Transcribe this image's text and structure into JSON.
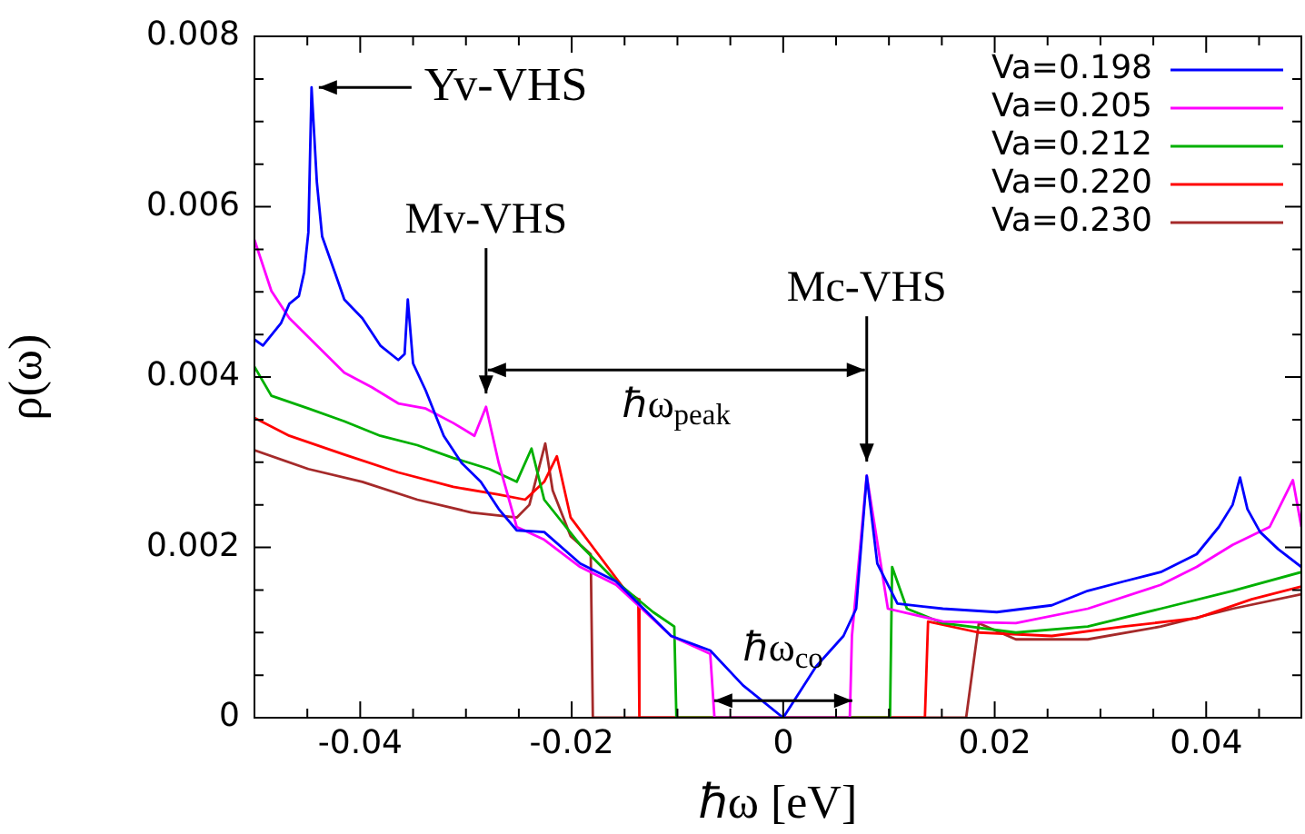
{
  "chart_data": {
    "type": "line",
    "xlabel": "ℏω [eV]",
    "ylabel": "ρ(ω)",
    "xlim": [
      -0.05,
      0.049
    ],
    "ylim": [
      0,
      0.008
    ],
    "xticks": [
      {
        "value": -0.045,
        "label": null
      },
      -0.04,
      {
        "value": -0.035,
        "label": null
      },
      {
        "value": -0.03,
        "label": null
      },
      {
        "value": -0.025,
        "label": null
      },
      -0.02,
      {
        "value": -0.015,
        "label": null
      },
      {
        "value": -0.01,
        "label": null
      },
      {
        "value": -0.005,
        "label": null
      },
      0,
      {
        "value": 0.005,
        "label": null
      },
      {
        "value": 0.01,
        "label": null
      },
      {
        "value": 0.015,
        "label": null
      },
      0.02,
      {
        "value": 0.025,
        "label": null
      },
      {
        "value": 0.03,
        "label": null
      },
      {
        "value": 0.035,
        "label": null
      },
      0.04,
      {
        "value": 0.045,
        "label": null
      }
    ],
    "yticks": [
      0,
      {
        "value": 0.0005,
        "label": null
      },
      {
        "value": 0.001,
        "label": null
      },
      {
        "value": 0.0015,
        "label": null
      },
      0.002,
      {
        "value": 0.0025,
        "label": null
      },
      {
        "value": 0.003,
        "label": null
      },
      {
        "value": 0.0035,
        "label": null
      },
      0.004,
      {
        "value": 0.0045,
        "label": null
      },
      {
        "value": 0.005,
        "label": null
      },
      {
        "value": 0.0055,
        "label": null
      },
      0.006,
      {
        "value": 0.0065,
        "label": null
      },
      {
        "value": 0.007,
        "label": null
      },
      {
        "value": 0.0075,
        "label": null
      },
      0.008
    ],
    "grid": false,
    "legend": "top right",
    "series": [
      {
        "name": "Va=0.198",
        "color": "#0000ff",
        "x": [
          -0.05,
          -0.0492,
          -0.0475,
          -0.0467,
          -0.0458,
          -0.0453,
          -0.0449,
          -0.0446,
          -0.0441,
          -0.0436,
          -0.0424,
          -0.0415,
          -0.0398,
          -0.0381,
          -0.0364,
          -0.0358,
          -0.0355,
          -0.035,
          -0.0338,
          -0.0321,
          -0.0304,
          -0.0286,
          -0.0269,
          -0.0252,
          -0.0226,
          -0.0192,
          -0.0158,
          -0.0106,
          -0.0069,
          -0.0038,
          0,
          0.0031,
          0.0057,
          0.0069,
          0.0079,
          0.0089,
          0.0108,
          0.0151,
          0.0202,
          0.0254,
          0.0288,
          0.0322,
          0.0357,
          0.0391,
          0.0412,
          0.0425,
          0.0432,
          0.0439,
          0.0451,
          0.0468,
          0.049
        ],
        "values": [
          0.00444,
          0.00437,
          0.00463,
          0.00486,
          0.00495,
          0.00523,
          0.0057,
          0.0074,
          0.00629,
          0.00565,
          0.00523,
          0.00491,
          0.00469,
          0.00437,
          0.0042,
          0.00427,
          0.00491,
          0.00416,
          0.00384,
          0.00331,
          0.00299,
          0.00277,
          0.00245,
          0.0022,
          0.00218,
          0.00181,
          0.0016,
          0.00096,
          0.00079,
          0.00038,
          0,
          0.0006,
          0.00096,
          0.00128,
          0.00284,
          0.00181,
          0.00134,
          0.00128,
          0.00124,
          0.00132,
          0.00149,
          0.0016,
          0.00171,
          0.00192,
          0.00224,
          0.0025,
          0.00282,
          0.00245,
          0.00218,
          0.00198,
          0.00177
        ]
      },
      {
        "name": "Va=0.205",
        "color": "#ff00ff",
        "x": [
          -0.05,
          -0.0484,
          -0.0467,
          -0.0441,
          -0.0415,
          -0.0389,
          -0.0364,
          -0.0338,
          -0.0312,
          -0.0292,
          -0.0281,
          -0.0269,
          -0.0252,
          -0.0226,
          -0.0192,
          -0.0158,
          -0.0106,
          -0.0069,
          -0.0065,
          0.0063,
          0.0065,
          0.0079,
          0.0099,
          0.0151,
          0.022,
          0.0288,
          0.0357,
          0.0391,
          0.0425,
          0.046,
          0.0482,
          0.049
        ],
        "values": [
          0.00561,
          0.00501,
          0.00469,
          0.00437,
          0.00405,
          0.00388,
          0.00369,
          0.00363,
          0.00346,
          0.00331,
          0.00365,
          0.00299,
          0.00224,
          0.00209,
          0.00177,
          0.00156,
          0.00096,
          0.00075,
          0,
          0,
          0.00096,
          0.00284,
          0.00128,
          0.00113,
          0.00111,
          0.00128,
          0.00156,
          0.00177,
          0.00203,
          0.00224,
          0.00279,
          0.00224
        ]
      },
      {
        "name": "Va=0.212",
        "color": "#00b000",
        "x": [
          -0.05,
          -0.0484,
          -0.0449,
          -0.0415,
          -0.0381,
          -0.0346,
          -0.0312,
          -0.0278,
          -0.0252,
          -0.0238,
          -0.0226,
          -0.0192,
          -0.0158,
          -0.0123,
          -0.0103,
          -0.0101,
          0.0101,
          0.0103,
          0.0117,
          0.0151,
          0.022,
          0.0288,
          0.0357,
          0.0425,
          0.049
        ],
        "values": [
          0.00412,
          0.00378,
          0.00363,
          0.00348,
          0.00331,
          0.0032,
          0.00305,
          0.00292,
          0.00277,
          0.00316,
          0.00256,
          0.00203,
          0.0016,
          0.00124,
          0.00107,
          0,
          0,
          0.00177,
          0.00128,
          0.00111,
          0.001,
          0.00107,
          0.00128,
          0.00149,
          0.00171
        ]
      },
      {
        "name": "Va=0.220",
        "color": "#ff0000",
        "x": [
          -0.05,
          -0.0467,
          -0.0415,
          -0.0364,
          -0.0312,
          -0.0269,
          -0.0244,
          -0.0226,
          -0.0214,
          -0.0201,
          -0.0175,
          -0.0149,
          -0.0137,
          -0.0136,
          0.0134,
          0.0137,
          0.0185,
          0.0254,
          0.0322,
          0.0391,
          0.0443,
          0.049
        ],
        "values": [
          0.00352,
          0.00331,
          0.00309,
          0.00288,
          0.00271,
          0.00262,
          0.00256,
          0.00277,
          0.00307,
          0.00235,
          0.00192,
          0.00149,
          0.00139,
          0,
          0,
          0.00113,
          0.001,
          0.00096,
          0.00107,
          0.00117,
          0.00139,
          0.00154
        ]
      },
      {
        "name": "Va=0.230",
        "color": "#a52a2a",
        "x": [
          -0.05,
          -0.0449,
          -0.0398,
          -0.0346,
          -0.0295,
          -0.0252,
          -0.024,
          -0.0225,
          -0.0218,
          -0.0201,
          -0.0182,
          -0.018,
          0.0173,
          0.0185,
          0.022,
          0.0288,
          0.0357,
          0.0425,
          0.049
        ],
        "values": [
          0.00314,
          0.00292,
          0.00277,
          0.00256,
          0.00241,
          0.00235,
          0.0025,
          0.00322,
          0.00267,
          0.00213,
          0.00192,
          0,
          0,
          0.00111,
          0.00092,
          0.00092,
          0.00107,
          0.00128,
          0.00145
        ]
      }
    ],
    "annotations": [
      {
        "text": "Yv-VHS",
        "x": -0.0446,
        "y": 0.0074
      },
      {
        "text": "Mv-VHS",
        "x": -0.0281,
        "y": 0.0037
      },
      {
        "text": "Mc-VHS",
        "x": 0.0079,
        "y": 0.0029
      },
      "ℏω$_{peak}$",
      {
        "text": "ℏω$_{co}$",
        "x": 0,
        "y": 0.0002
      }
    ]
  }
}
